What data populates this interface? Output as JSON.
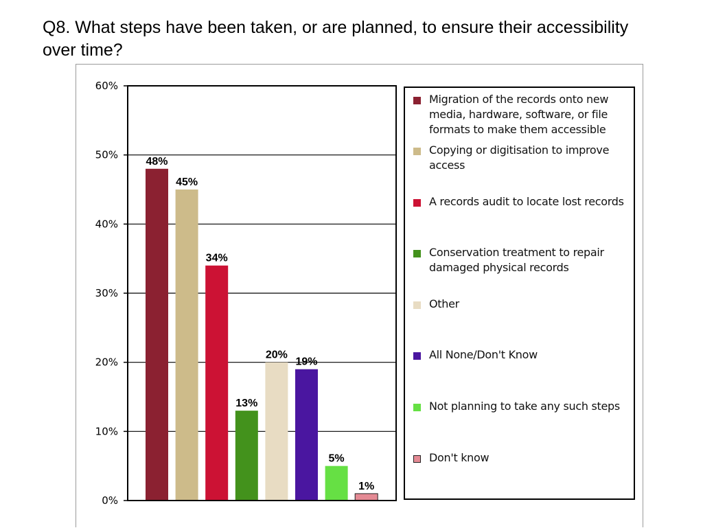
{
  "slide": {
    "title": "Q8. What steps have been taken, or are planned, to ensure their accessibility over time?"
  },
  "chart_data": {
    "type": "bar",
    "title": "",
    "xlabel": "",
    "ylabel": "",
    "ylim": [
      0,
      60
    ],
    "yticks": [
      "0%",
      "10%",
      "20%",
      "30%",
      "40%",
      "50%",
      "60%"
    ],
    "grid": true,
    "legend_position": "right",
    "categories": [
      "Migration of the records onto new media, hardware, software, or file formats to make them accessible",
      "Copying or digitisation to improve access",
      "A records audit to locate lost records",
      "Conservation treatment to repair damaged physical records",
      "Other",
      "All None/Don't Know",
      "Not planning to take any such steps",
      "Don't know"
    ],
    "values": [
      48,
      45,
      34,
      13,
      20,
      19,
      5,
      1
    ],
    "data_labels": [
      "48%",
      "45%",
      "34%",
      "13%",
      "20%",
      "19%",
      "5%",
      "1%"
    ],
    "colors": [
      "#8b2131",
      "#cdbb8a",
      "#cc1234",
      "#43921c",
      "#e8dcc3",
      "#4a16a0",
      "#66e044",
      "#e48a94"
    ],
    "legend": [
      {
        "lines": [
          "Migration of the records onto new",
          "media, hardware, software, or file",
          "formats to make them accessible"
        ],
        "color": "#8b2131"
      },
      {
        "lines": [
          "Copying or digitisation to improve",
          "access"
        ],
        "color": "#cdbb8a"
      },
      {
        "lines": [
          "A records audit to locate lost records"
        ],
        "color": "#cc1234"
      },
      {
        "lines": [
          "Conservation treatment to repair",
          "damaged physical records"
        ],
        "color": "#43921c"
      },
      {
        "lines": [
          "Other"
        ],
        "color": "#e8dcc3"
      },
      {
        "lines": [
          "All None/Don't Know"
        ],
        "color": "#4a16a0"
      },
      {
        "lines": [
          "Not planning to take any such steps"
        ],
        "color": "#66e044"
      },
      {
        "lines": [
          "Don't know"
        ],
        "color": "#e48a94"
      }
    ]
  }
}
